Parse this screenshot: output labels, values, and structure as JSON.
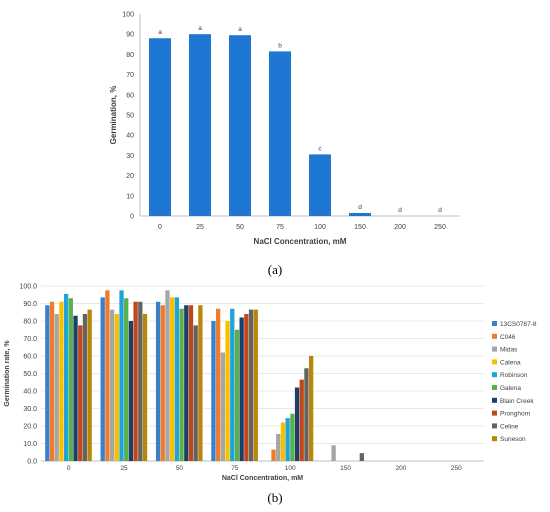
{
  "panel_a_label": "(a)",
  "panel_b_label": "(b)",
  "chart_data": [
    {
      "type": "bar",
      "title": "",
      "xlabel": "NaCl Concentration,  mM",
      "ylabel": "Germination, %",
      "categories": [
        "0",
        "25",
        "50",
        "75",
        "100",
        "150",
        "200",
        "250"
      ],
      "values": [
        88,
        90,
        89.5,
        81.5,
        30.5,
        1.5,
        0,
        0
      ],
      "data_labels": [
        "a",
        "a",
        "a",
        "b",
        "c",
        "d",
        "d",
        "d"
      ],
      "ylim": [
        0,
        100
      ],
      "yticks": [
        "0",
        "10",
        "20",
        "30",
        "40",
        "50",
        "60",
        "70",
        "80",
        "90",
        "100"
      ],
      "color": "#1f77d4",
      "grid": false,
      "legend": "none"
    },
    {
      "type": "bar",
      "title": "",
      "xlabel": "NaCl Concentration,  mM",
      "ylabel": "Germination rate, %",
      "categories": [
        "0",
        "25",
        "50",
        "75",
        "100",
        "150",
        "200",
        "250"
      ],
      "ylim": [
        0,
        100
      ],
      "yticks": [
        "0.0",
        "10.0",
        "20.0",
        "30.0",
        "40.0",
        "50.0",
        "60.0",
        "70.0",
        "80.0",
        "90.0",
        "100.0"
      ],
      "grid": true,
      "legend": "right",
      "series": [
        {
          "name": "13CS0787-8",
          "color": "#3a7fc9",
          "values": [
            89,
            93.5,
            91,
            80,
            0,
            0,
            0,
            0
          ]
        },
        {
          "name": "C046",
          "color": "#ee7c2b",
          "values": [
            91,
            97.5,
            89,
            87,
            6.5,
            0,
            0,
            0
          ]
        },
        {
          "name": "Midas",
          "color": "#a5a5a5",
          "values": [
            84,
            86.5,
            97.5,
            62,
            15.5,
            9,
            0,
            0
          ]
        },
        {
          "name": "Calena",
          "color": "#f6c000",
          "values": [
            91,
            84,
            93.5,
            80,
            22,
            0,
            0,
            0
          ]
        },
        {
          "name": "Robinson",
          "color": "#1fa3d9",
          "values": [
            95.5,
            97.5,
            93.5,
            87,
            24.5,
            0,
            0,
            0
          ]
        },
        {
          "name": "Galena",
          "color": "#58b14b",
          "values": [
            93,
            93,
            87,
            75,
            27,
            0,
            0,
            0
          ]
        },
        {
          "name": "Blain Creek",
          "color": "#1e3e6a",
          "values": [
            83,
            80,
            89,
            82,
            42,
            0,
            0,
            0
          ]
        },
        {
          "name": "Pronghorn",
          "color": "#c0471a",
          "values": [
            77.5,
            91,
            89,
            84,
            46.5,
            0,
            0,
            0
          ]
        },
        {
          "name": "Celine",
          "color": "#636363",
          "values": [
            84,
            91,
            77.5,
            86.5,
            53,
            4.5,
            0,
            0
          ]
        },
        {
          "name": "Suneson",
          "color": "#b8860b",
          "values": [
            86.5,
            84,
            89,
            86.5,
            60,
            0,
            0,
            0
          ]
        }
      ]
    }
  ]
}
